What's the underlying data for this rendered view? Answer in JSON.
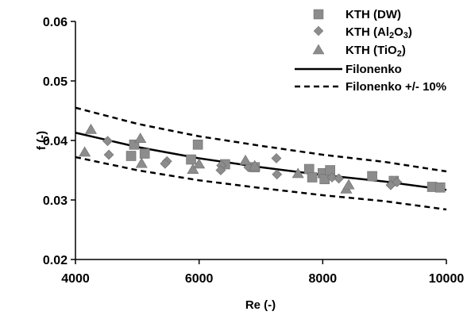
{
  "chart_data": {
    "type": "scatter",
    "xlabel": "Re (-)",
    "ylabel": "f (-)",
    "xlim": [
      4000,
      10000
    ],
    "ylim": [
      0.02,
      0.06
    ],
    "x_ticks": [
      4000,
      6000,
      8000,
      10000
    ],
    "y_ticks": [
      0.02,
      0.03,
      0.04,
      0.05,
      0.06
    ],
    "x_tick_labels": [
      "4000",
      "6000",
      "8000",
      "10000"
    ],
    "y_tick_labels": [
      "0.02",
      "0.03",
      "0.04",
      "0.05",
      "0.06"
    ],
    "grid": false,
    "legend_position": "top-right",
    "series": [
      {
        "name": "KTH (DW)",
        "marker": "square",
        "color": "#8c8c8c",
        "points": [
          {
            "x": 4900,
            "y": 0.0374
          },
          {
            "x": 4950,
            "y": 0.0393
          },
          {
            "x": 5120,
            "y": 0.0378
          },
          {
            "x": 5870,
            "y": 0.0368
          },
          {
            "x": 5980,
            "y": 0.0393
          },
          {
            "x": 6420,
            "y": 0.036
          },
          {
            "x": 6900,
            "y": 0.0355
          },
          {
            "x": 7780,
            "y": 0.0352
          },
          {
            "x": 7830,
            "y": 0.0338
          },
          {
            "x": 8000,
            "y": 0.0345
          },
          {
            "x": 8030,
            "y": 0.0335
          },
          {
            "x": 8120,
            "y": 0.035
          },
          {
            "x": 8800,
            "y": 0.034
          },
          {
            "x": 9150,
            "y": 0.0332
          },
          {
            "x": 9770,
            "y": 0.0322
          },
          {
            "x": 9900,
            "y": 0.0321
          }
        ]
      },
      {
        "name": "KTH (Al2O3)",
        "name_parts": {
          "prefix": "KTH (Al",
          "sub1": "2",
          "mid": "O",
          "sub2": "3",
          "suffix": ")"
        },
        "marker": "diamond",
        "color": "#8c8c8c",
        "points": [
          {
            "x": 4520,
            "y": 0.0399
          },
          {
            "x": 4540,
            "y": 0.0376
          },
          {
            "x": 5480,
            "y": 0.0365
          },
          {
            "x": 5450,
            "y": 0.0361
          },
          {
            "x": 6360,
            "y": 0.0358
          },
          {
            "x": 6350,
            "y": 0.035
          },
          {
            "x": 6800,
            "y": 0.0355
          },
          {
            "x": 7250,
            "y": 0.037
          },
          {
            "x": 7260,
            "y": 0.0343
          },
          {
            "x": 8150,
            "y": 0.0338
          },
          {
            "x": 8260,
            "y": 0.0336
          },
          {
            "x": 9100,
            "y": 0.0325
          },
          {
            "x": 9200,
            "y": 0.033
          }
        ]
      },
      {
        "name": "KTH (TiO2)",
        "name_parts": {
          "prefix": "KTH (TiO",
          "sub1": "2",
          "suffix": ")"
        },
        "marker": "triangle",
        "color": "#8c8c8c",
        "points": [
          {
            "x": 4150,
            "y": 0.038
          },
          {
            "x": 4250,
            "y": 0.0418
          },
          {
            "x": 5050,
            "y": 0.0403
          },
          {
            "x": 5070,
            "y": 0.0361
          },
          {
            "x": 5900,
            "y": 0.0351
          },
          {
            "x": 6000,
            "y": 0.036
          },
          {
            "x": 6750,
            "y": 0.0366
          },
          {
            "x": 6900,
            "y": 0.0357
          },
          {
            "x": 7600,
            "y": 0.0344
          },
          {
            "x": 8380,
            "y": 0.0318
          },
          {
            "x": 8420,
            "y": 0.0325
          }
        ]
      },
      {
        "name": "Filonenko",
        "type": "line",
        "style": "solid",
        "color": "#000000",
        "points": [
          {
            "x": 4000,
            "y": 0.0413
          },
          {
            "x": 5000,
            "y": 0.0389
          },
          {
            "x": 6000,
            "y": 0.037
          },
          {
            "x": 7000,
            "y": 0.0355
          },
          {
            "x": 8000,
            "y": 0.0342
          },
          {
            "x": 9000,
            "y": 0.0331
          },
          {
            "x": 10000,
            "y": 0.0317
          }
        ]
      },
      {
        "name": "Filonenko +/- 10%",
        "type": "line",
        "style": "dashed",
        "color": "#000000",
        "bands": [
          [
            {
              "x": 4000,
              "y": 0.0455
            },
            {
              "x": 5000,
              "y": 0.0428
            },
            {
              "x": 6000,
              "y": 0.0407
            },
            {
              "x": 7000,
              "y": 0.0391
            },
            {
              "x": 8000,
              "y": 0.0376
            },
            {
              "x": 9000,
              "y": 0.0364
            },
            {
              "x": 10000,
              "y": 0.0348
            }
          ],
          [
            {
              "x": 4000,
              "y": 0.0372
            },
            {
              "x": 5000,
              "y": 0.035
            },
            {
              "x": 6000,
              "y": 0.0333
            },
            {
              "x": 7000,
              "y": 0.032
            },
            {
              "x": 8000,
              "y": 0.0308
            },
            {
              "x": 9000,
              "y": 0.0298
            },
            {
              "x": 10000,
              "y": 0.0284
            }
          ]
        ]
      }
    ]
  }
}
